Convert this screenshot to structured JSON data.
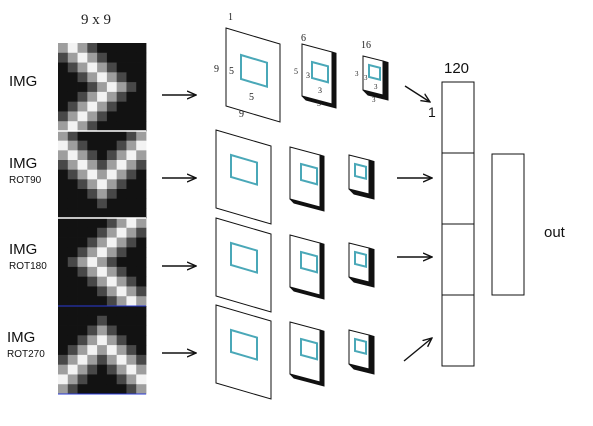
{
  "header": {
    "grid_label": "9 x 9"
  },
  "rows": [
    {
      "img_label": "IMG",
      "rot_label": ""
    },
    {
      "img_label": "IMG",
      "rot_label": "ROT90"
    },
    {
      "img_label": "IMG",
      "rot_label": "ROT180"
    },
    {
      "img_label": "IMG",
      "rot_label": "ROT270"
    }
  ],
  "layer_annotations": {
    "input": {
      "depth": "1",
      "size_left": "9",
      "size_bottom": "9",
      "kernel_left": "5",
      "kernel_bottom": "5"
    },
    "conv1": {
      "depth": "6",
      "size_left": "5",
      "size_bottom": "5",
      "kernel_left": "3",
      "kernel_bottom": "3"
    },
    "conv2": {
      "depth": "16",
      "size_left": "3",
      "size_bottom": "3",
      "kernel_left": "3",
      "kernel_bottom": "3"
    }
  },
  "fc": {
    "width_label": "120",
    "cell_label": "1"
  },
  "output": {
    "label": "out"
  },
  "colors": {
    "kernel": "#4aa8b8",
    "separator": "#2a3bd6",
    "stroke": "#111111"
  }
}
